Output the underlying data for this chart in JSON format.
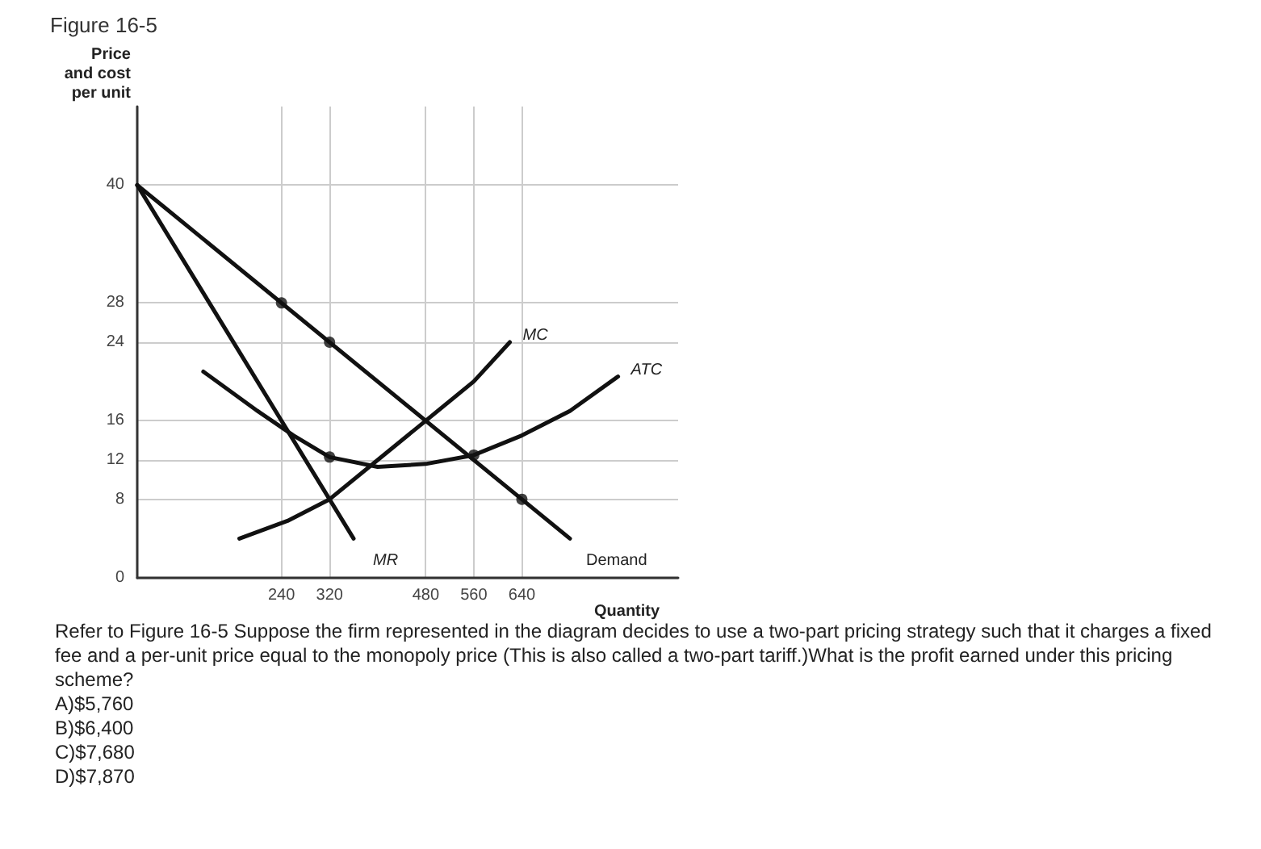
{
  "chart_data": {
    "type": "line",
    "title": "Figure 16-5",
    "ylabel": "Price\nand cost\nper unit",
    "xlabel": "Quantity",
    "xlim": [
      0,
      900
    ],
    "ylim": [
      0,
      48
    ],
    "xticks": [
      240,
      320,
      480,
      560,
      640
    ],
    "yticks": [
      0,
      8,
      12,
      16,
      24,
      28,
      40
    ],
    "grid": true,
    "legend": false,
    "marker": "none",
    "line_style": "solid",
    "series": [
      {
        "name": "Demand",
        "color": "#111111",
        "x": [
          0,
          720
        ],
        "values": [
          40,
          4
        ]
      },
      {
        "name": "MR",
        "color": "#111111",
        "x": [
          0,
          360
        ],
        "values": [
          40,
          4
        ]
      },
      {
        "name": "MC",
        "color": "#111111",
        "x": [
          170,
          250,
          320,
          400,
          480,
          560,
          620
        ],
        "values": [
          4,
          5.8,
          8,
          12,
          16,
          20,
          24
        ]
      },
      {
        "name": "ATC",
        "color": "#111111",
        "x": [
          110,
          200,
          260,
          320,
          400,
          480,
          560,
          640,
          720,
          800
        ],
        "values": [
          21,
          17,
          14.5,
          12.3,
          11.3,
          11.6,
          12.5,
          14.5,
          17,
          20.5
        ]
      },
      {
        "type": "scatter",
        "marker": "circle",
        "color": "#111111",
        "x": [
          240,
          320,
          320,
          560,
          640
        ],
        "values": [
          28,
          24,
          12.3,
          12.5,
          8
        ]
      }
    ],
    "annotations": [
      "Refer to Figure 16-5 Suppose the firm represented in the diagram decides to use a two-part pricing strategy such that it charges a fixed fee and a per-unit price equal to the monopoly price (This is also called a two-part tariff.)What is the profit earned under this pricing scheme?",
      "A)$5,760",
      "B)$6,400",
      "C)$7,680",
      "D)$7,870"
    ]
  }
}
